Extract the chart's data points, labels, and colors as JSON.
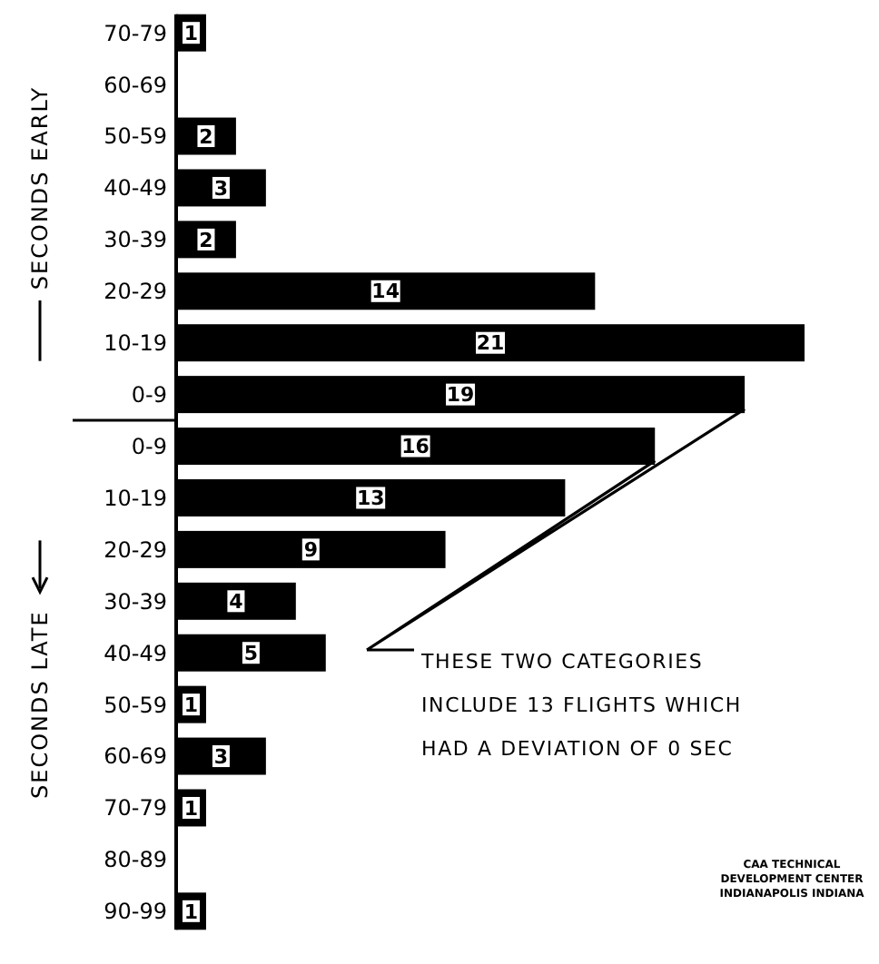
{
  "chart_data": {
    "type": "bar",
    "orientation": "horizontal",
    "categories": [
      "70-79",
      "60-69",
      "50-59",
      "40-49",
      "30-39",
      "20-29",
      "10-19",
      "0-9",
      "0-9",
      "10-19",
      "20-29",
      "30-39",
      "40-49",
      "50-59",
      "60-69",
      "70-79",
      "80-89",
      "90-99"
    ],
    "values": [
      1,
      0,
      2,
      3,
      2,
      14,
      21,
      19,
      16,
      13,
      9,
      4,
      5,
      1,
      3,
      1,
      0,
      1
    ],
    "value_labels": [
      "1",
      null,
      "2",
      "3",
      "2",
      "14",
      "21",
      "19",
      "16",
      "13",
      "9",
      "4",
      "5",
      "1",
      "3",
      "1",
      null,
      "1"
    ],
    "color": "#000000",
    "annotations": [
      "SECONDS EARLY",
      "SECONDS LATE",
      "THESE TWO CATEGORIES INCLUDE 13 FLIGHTS WHICH HAD A DEVIATION OF 0 SEC",
      "CAA TECHNICAL DEVELOPMENT CENTER INDIANAPOLIS INDIANA"
    ]
  }
}
